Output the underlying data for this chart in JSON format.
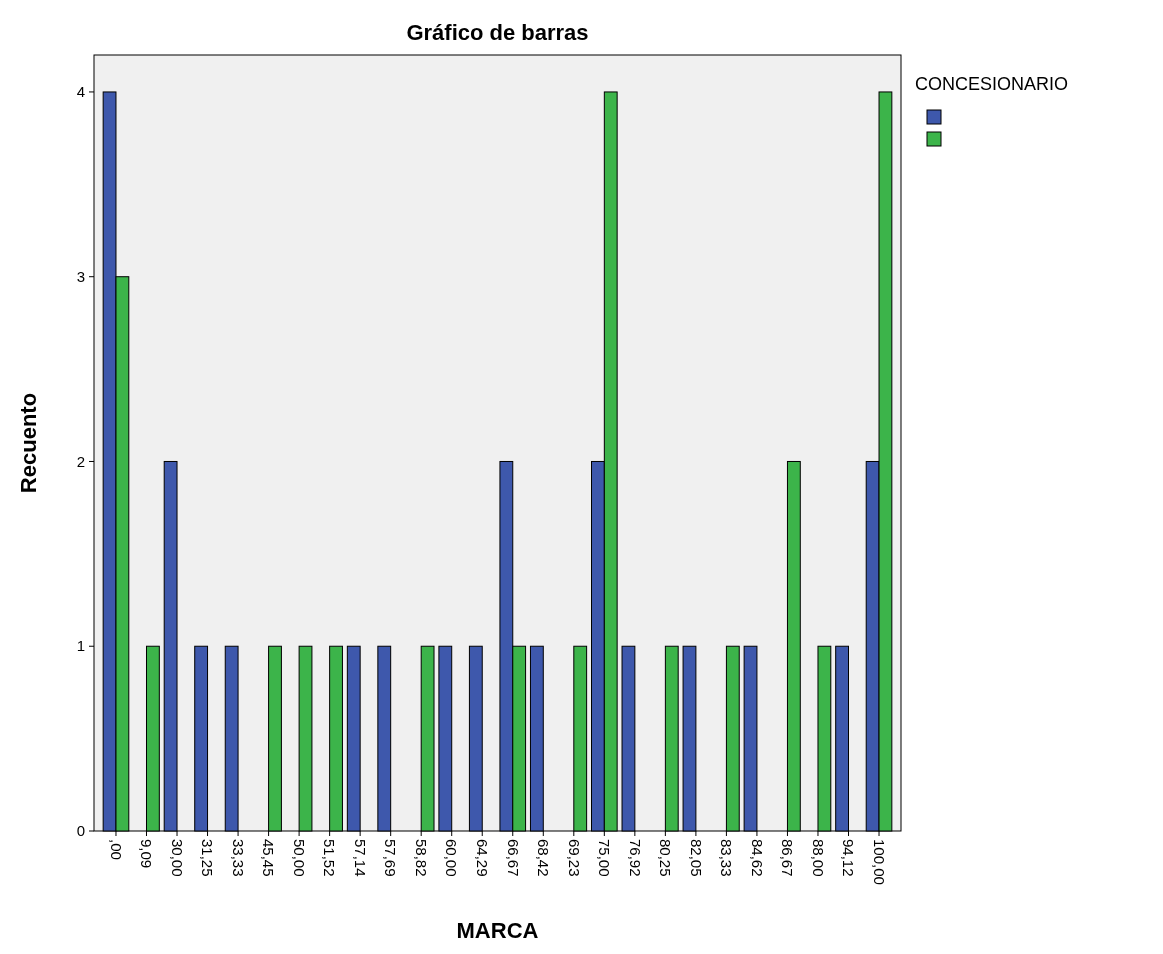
{
  "chart_data": {
    "type": "bar",
    "title": "Gráfico de barras",
    "xlabel": "MARCA",
    "ylabel": "Recuento",
    "legend_title": "CONCESIONARIO",
    "categories": [
      ",00",
      "9,09",
      "30,00",
      "31,25",
      "33,33",
      "45,45",
      "50,00",
      "51,52",
      "57,14",
      "57,69",
      "58,82",
      "60,00",
      "64,29",
      "66,67",
      "68,42",
      "69,23",
      "75,00",
      "76,92",
      "80,25",
      "82,05",
      "83,33",
      "84,62",
      "86,67",
      "88,00",
      "94,12",
      "100,00"
    ],
    "series": [
      {
        "color": "#3e58ac",
        "values": [
          4,
          0,
          2,
          1,
          1,
          0,
          0,
          0,
          1,
          1,
          0,
          1,
          1,
          2,
          1,
          0,
          2,
          1,
          0,
          1,
          0,
          1,
          0,
          0,
          1,
          2
        ]
      },
      {
        "color": "#3cb44a",
        "values": [
          3,
          1,
          0,
          0,
          0,
          1,
          1,
          1,
          0,
          0,
          1,
          0,
          0,
          1,
          0,
          1,
          4,
          0,
          1,
          0,
          1,
          0,
          2,
          1,
          0,
          4
        ]
      }
    ],
    "ylim": [
      0,
      4.2
    ],
    "yticks": [
      0,
      1,
      2,
      3,
      4
    ],
    "grid": false
  }
}
